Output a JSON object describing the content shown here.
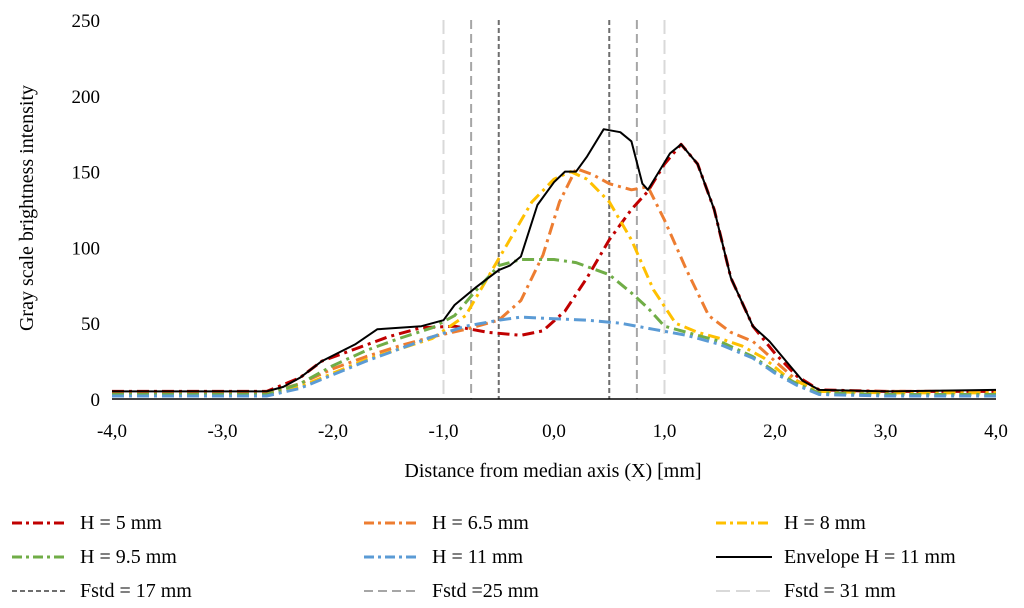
{
  "chart_data": {
    "type": "line",
    "title": "",
    "xlabel": "Distance from median axis (X) [mm]",
    "ylabel": "Gray scale brightness intensity",
    "xlim": [
      -4,
      4
    ],
    "ylim": [
      0,
      250
    ],
    "x_ticks": [
      "-4,0",
      "-3,0",
      "-2,0",
      "-1,0",
      "0,0",
      "1,0",
      "2,0",
      "3,0",
      "4,0"
    ],
    "y_ticks": [
      "0",
      "50",
      "100",
      "150",
      "200",
      "250"
    ],
    "grid": false,
    "legend_position": "bottom",
    "series": [
      {
        "name": "H = 5 mm",
        "color": "#c00000",
        "dash": "dashdot",
        "points": [
          [
            -4.0,
            5
          ],
          [
            -2.6,
            5
          ],
          [
            -2.3,
            14
          ],
          [
            -2.1,
            25
          ],
          [
            -1.8,
            33
          ],
          [
            -1.5,
            41
          ],
          [
            -1.2,
            47
          ],
          [
            -0.9,
            48
          ],
          [
            -0.6,
            44
          ],
          [
            -0.3,
            42
          ],
          [
            -0.1,
            45
          ],
          [
            0.1,
            58
          ],
          [
            0.3,
            80
          ],
          [
            0.5,
            105
          ],
          [
            0.7,
            125
          ],
          [
            0.85,
            137
          ],
          [
            1.0,
            155
          ],
          [
            1.15,
            168
          ],
          [
            1.3,
            155
          ],
          [
            1.45,
            125
          ],
          [
            1.6,
            80
          ],
          [
            1.8,
            48
          ],
          [
            2.0,
            30
          ],
          [
            2.2,
            15
          ],
          [
            2.4,
            6
          ],
          [
            3.0,
            5
          ],
          [
            4.0,
            5
          ]
        ]
      },
      {
        "name": "H = 6.5 mm",
        "color": "#ed7d31",
        "dash": "dashdot",
        "points": [
          [
            -4.0,
            4
          ],
          [
            -2.6,
            4
          ],
          [
            -2.3,
            10
          ],
          [
            -2.0,
            20
          ],
          [
            -1.7,
            28
          ],
          [
            -1.4,
            35
          ],
          [
            -1.1,
            41
          ],
          [
            -0.8,
            46
          ],
          [
            -0.5,
            52
          ],
          [
            -0.3,
            65
          ],
          [
            -0.1,
            95
          ],
          [
            0.05,
            130
          ],
          [
            0.2,
            152
          ],
          [
            0.35,
            148
          ],
          [
            0.5,
            142
          ],
          [
            0.7,
            138
          ],
          [
            0.85,
            140
          ],
          [
            1.0,
            118
          ],
          [
            1.2,
            85
          ],
          [
            1.4,
            55
          ],
          [
            1.6,
            44
          ],
          [
            1.8,
            38
          ],
          [
            2.0,
            25
          ],
          [
            2.2,
            12
          ],
          [
            2.4,
            5
          ],
          [
            3.0,
            5
          ],
          [
            4.0,
            5
          ]
        ]
      },
      {
        "name": "H = 8 mm",
        "color": "#ffc000",
        "dash": "dashdot",
        "points": [
          [
            -4.0,
            3
          ],
          [
            -2.6,
            3
          ],
          [
            -2.3,
            8
          ],
          [
            -2.0,
            17
          ],
          [
            -1.7,
            26
          ],
          [
            -1.4,
            33
          ],
          [
            -1.1,
            40
          ],
          [
            -0.8,
            55
          ],
          [
            -0.6,
            80
          ],
          [
            -0.4,
            105
          ],
          [
            -0.2,
            130
          ],
          [
            0.0,
            145
          ],
          [
            0.15,
            150
          ],
          [
            0.3,
            145
          ],
          [
            0.5,
            130
          ],
          [
            0.7,
            105
          ],
          [
            0.9,
            72
          ],
          [
            1.1,
            50
          ],
          [
            1.3,
            44
          ],
          [
            1.5,
            40
          ],
          [
            1.7,
            35
          ],
          [
            1.9,
            27
          ],
          [
            2.1,
            15
          ],
          [
            2.4,
            5
          ],
          [
            3.0,
            4
          ],
          [
            4.0,
            4
          ]
        ]
      },
      {
        "name": "H = 9.5 mm",
        "color": "#70ad47",
        "dash": "dashdot",
        "points": [
          [
            -4.0,
            3
          ],
          [
            -2.6,
            3
          ],
          [
            -2.3,
            10
          ],
          [
            -2.0,
            22
          ],
          [
            -1.7,
            32
          ],
          [
            -1.4,
            40
          ],
          [
            -1.1,
            47
          ],
          [
            -0.9,
            55
          ],
          [
            -0.7,
            72
          ],
          [
            -0.5,
            88
          ],
          [
            -0.3,
            92
          ],
          [
            0.0,
            92
          ],
          [
            0.2,
            90
          ],
          [
            0.5,
            82
          ],
          [
            0.7,
            70
          ],
          [
            0.85,
            60
          ],
          [
            1.0,
            48
          ],
          [
            1.2,
            44
          ],
          [
            1.5,
            38
          ],
          [
            1.8,
            28
          ],
          [
            2.0,
            18
          ],
          [
            2.2,
            10
          ],
          [
            2.4,
            4
          ],
          [
            3.0,
            3
          ],
          [
            4.0,
            3
          ]
        ]
      },
      {
        "name": "H = 11 mm",
        "color": "#5b9bd5",
        "dash": "dashdot",
        "points": [
          [
            -4.0,
            2
          ],
          [
            -2.6,
            2
          ],
          [
            -2.3,
            7
          ],
          [
            -2.0,
            16
          ],
          [
            -1.7,
            25
          ],
          [
            -1.4,
            33
          ],
          [
            -1.1,
            41
          ],
          [
            -0.8,
            48
          ],
          [
            -0.5,
            52
          ],
          [
            -0.3,
            54
          ],
          [
            0.0,
            53
          ],
          [
            0.3,
            52
          ],
          [
            0.6,
            50
          ],
          [
            0.9,
            46
          ],
          [
            1.2,
            42
          ],
          [
            1.5,
            36
          ],
          [
            1.8,
            27
          ],
          [
            2.0,
            17
          ],
          [
            2.2,
            9
          ],
          [
            2.4,
            3
          ],
          [
            3.0,
            2
          ],
          [
            4.0,
            2
          ]
        ]
      },
      {
        "name": "Envelope H = 11 mm",
        "color": "#000000",
        "dash": "solid",
        "points": [
          [
            -4.0,
            5
          ],
          [
            -2.6,
            5
          ],
          [
            -2.45,
            8
          ],
          [
            -2.3,
            14
          ],
          [
            -2.1,
            25
          ],
          [
            -1.8,
            36
          ],
          [
            -1.6,
            46
          ],
          [
            -1.4,
            47
          ],
          [
            -1.2,
            48
          ],
          [
            -1.0,
            52
          ],
          [
            -0.9,
            62
          ],
          [
            -0.7,
            74
          ],
          [
            -0.5,
            85
          ],
          [
            -0.4,
            88
          ],
          [
            -0.3,
            94
          ],
          [
            -0.15,
            128
          ],
          [
            0.0,
            143
          ],
          [
            0.1,
            150
          ],
          [
            0.2,
            150
          ],
          [
            0.3,
            160
          ],
          [
            0.45,
            178
          ],
          [
            0.6,
            176
          ],
          [
            0.7,
            170
          ],
          [
            0.8,
            142
          ],
          [
            0.85,
            138
          ],
          [
            0.95,
            150
          ],
          [
            1.05,
            162
          ],
          [
            1.15,
            168
          ],
          [
            1.3,
            155
          ],
          [
            1.45,
            125
          ],
          [
            1.6,
            80
          ],
          [
            1.8,
            48
          ],
          [
            1.95,
            38
          ],
          [
            2.1,
            25
          ],
          [
            2.25,
            12
          ],
          [
            2.4,
            6
          ],
          [
            3.0,
            5
          ],
          [
            4.0,
            6
          ]
        ]
      }
    ],
    "reference_lines": [
      {
        "name": "Fstd = 17 mm",
        "color": "#6e6e6e",
        "x": [
          -0.5,
          0.5
        ]
      },
      {
        "name": "Fstd =25 mm",
        "color": "#a6a6a6",
        "x": [
          -0.75,
          0.75
        ]
      },
      {
        "name": "Fstd = 31 mm",
        "color": "#d9d9d9",
        "x": [
          -1.0,
          1.0
        ]
      }
    ]
  }
}
